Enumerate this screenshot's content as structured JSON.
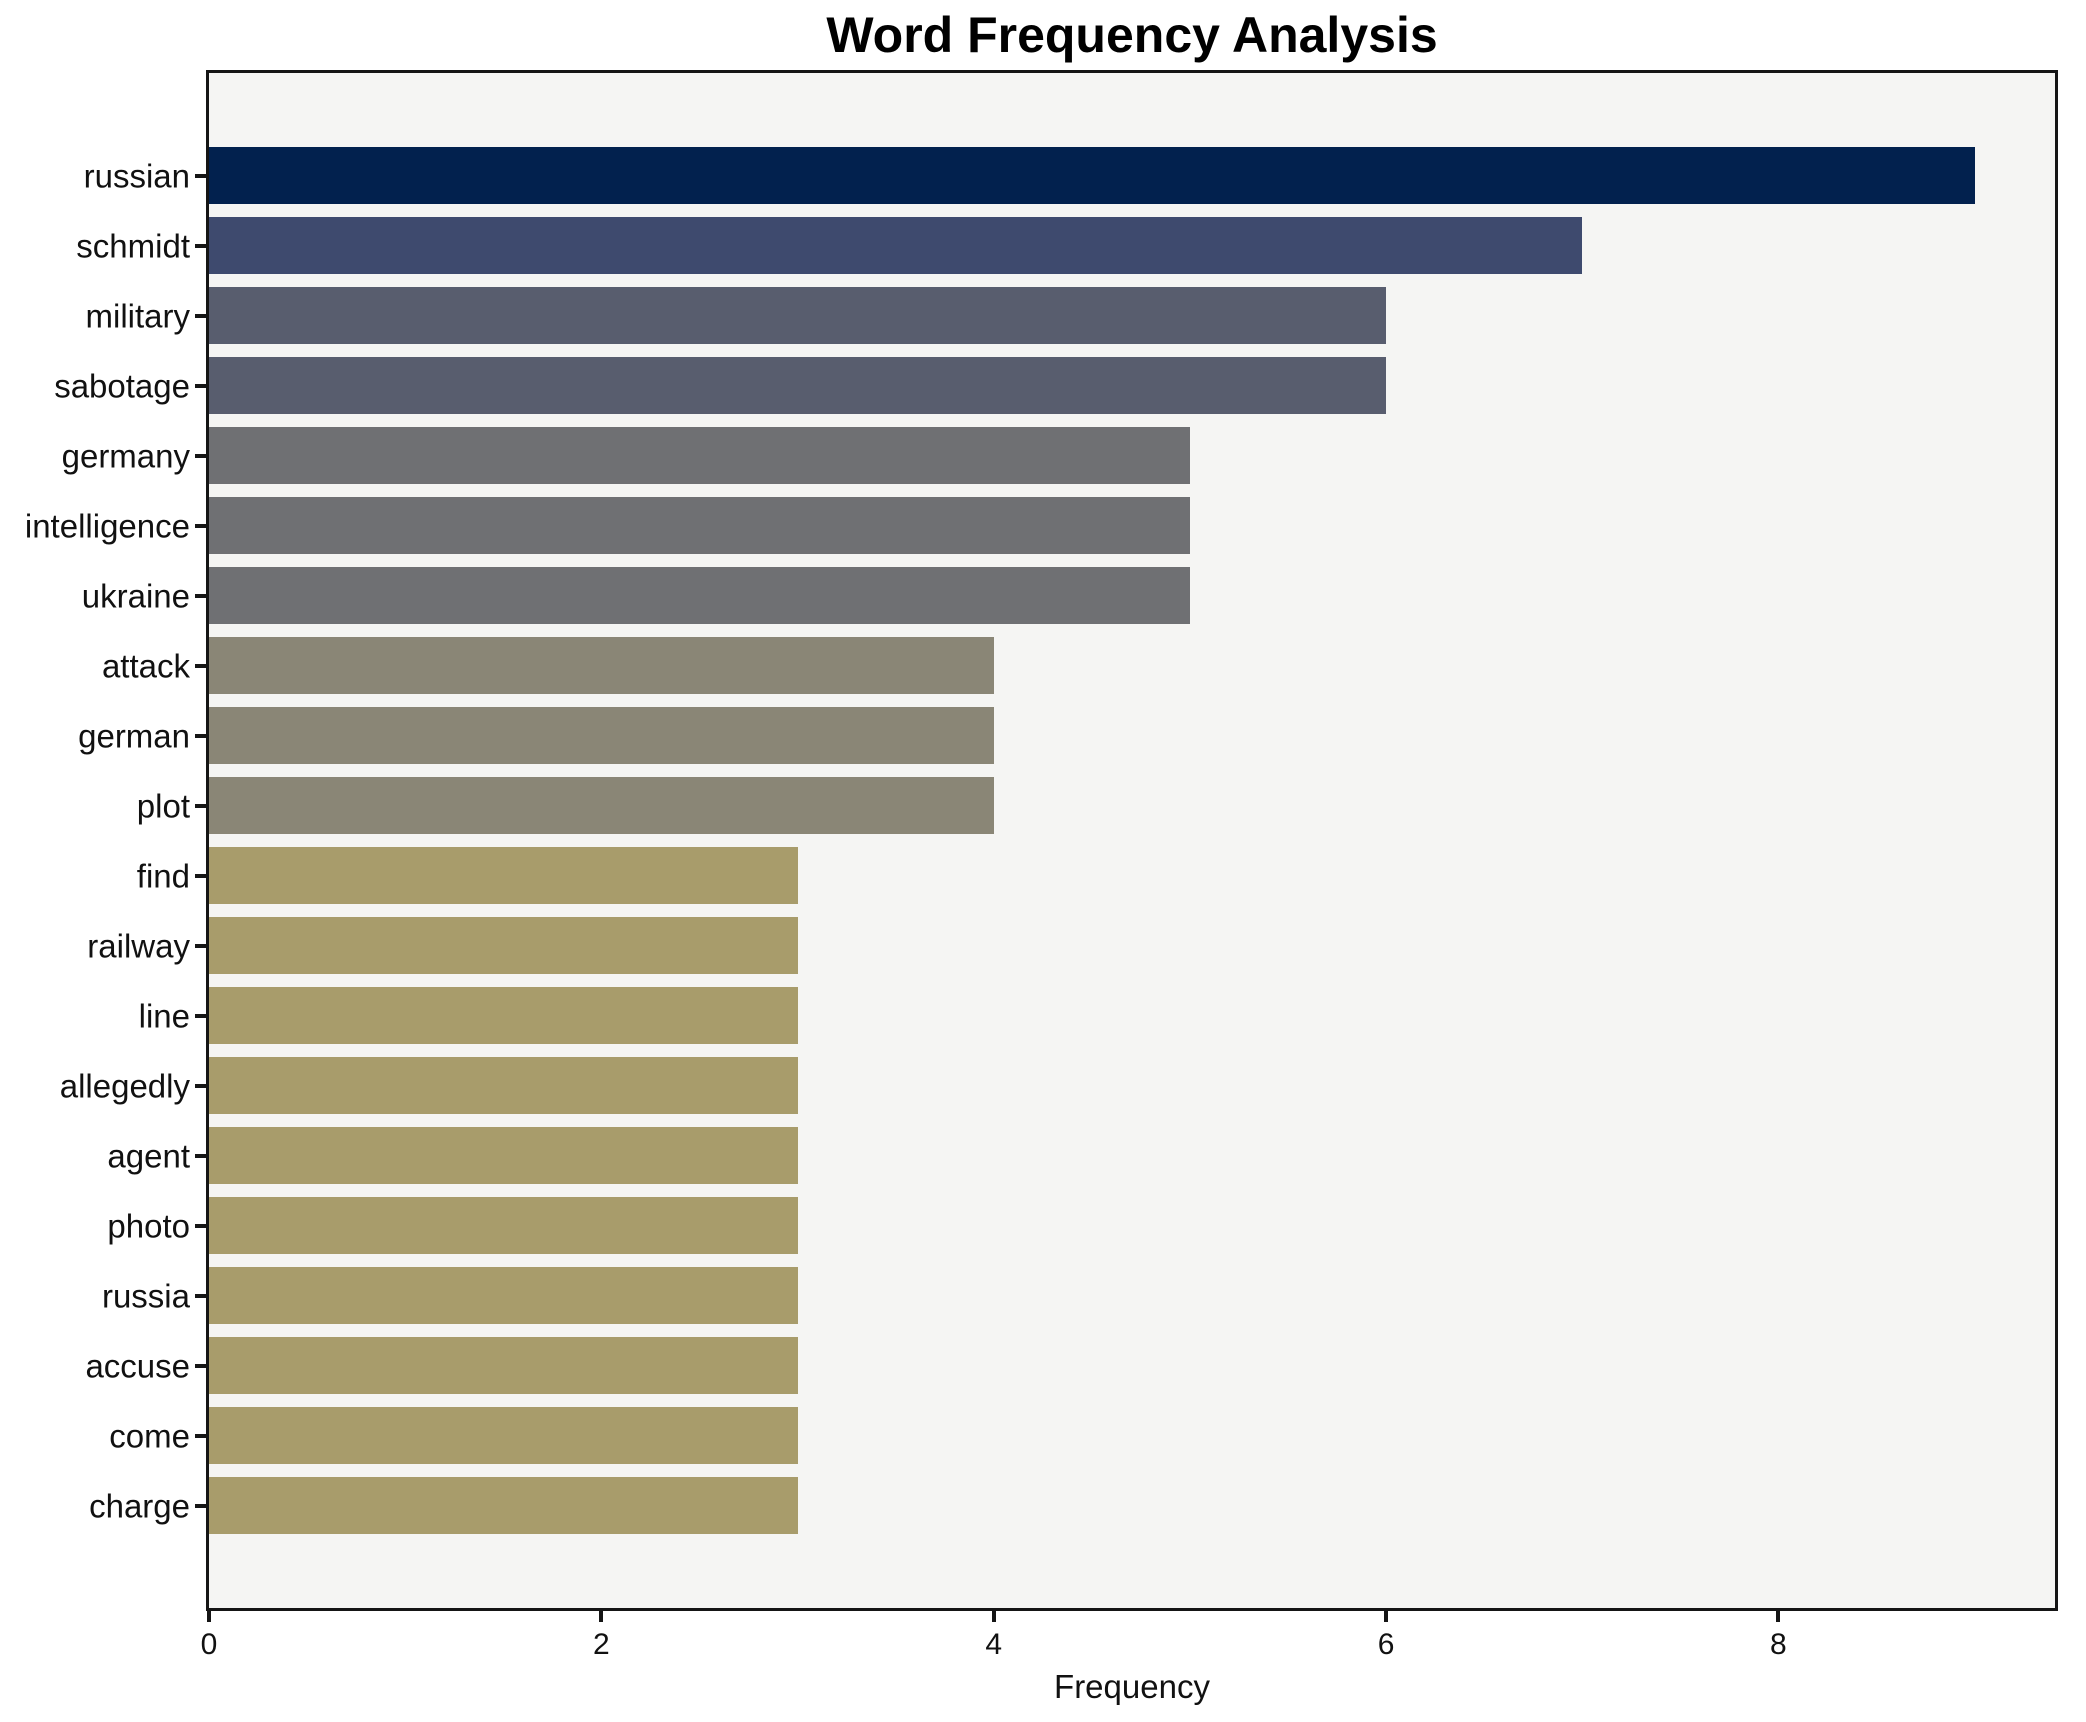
{
  "chart_data": {
    "type": "bar",
    "orientation": "horizontal",
    "title": "Word Frequency Analysis",
    "xlabel": "Frequency",
    "ylabel": "",
    "xlim": [
      0,
      9.41
    ],
    "xticks": [
      0,
      2,
      4,
      6,
      8
    ],
    "grid": false,
    "legend": false,
    "categories": [
      "russian",
      "schmidt",
      "military",
      "sabotage",
      "germany",
      "intelligence",
      "ukraine",
      "attack",
      "german",
      "plot",
      "find",
      "railway",
      "line",
      "allegedly",
      "agent",
      "photo",
      "russia",
      "accuse",
      "come",
      "charge"
    ],
    "values": [
      9,
      7,
      6,
      6,
      5,
      5,
      5,
      4,
      4,
      4,
      3,
      3,
      3,
      3,
      3,
      3,
      3,
      3,
      3,
      3
    ],
    "bar_colors": [
      "#02214e",
      "#3e4a6e",
      "#585d6e",
      "#585d6e",
      "#6f7073",
      "#6f7073",
      "#6f7073",
      "#8a8676",
      "#8a8676",
      "#8a8676",
      "#a89c6b",
      "#a89c6b",
      "#a89c6b",
      "#a89c6b",
      "#a89c6b",
      "#a89c6b",
      "#a89c6b",
      "#a89c6b",
      "#a89c6b",
      "#a89c6b"
    ],
    "colors": {
      "figure_background": "#ffffff",
      "axes_background": "#f5f5f3",
      "spine": "#151515",
      "text": "#111111"
    }
  }
}
